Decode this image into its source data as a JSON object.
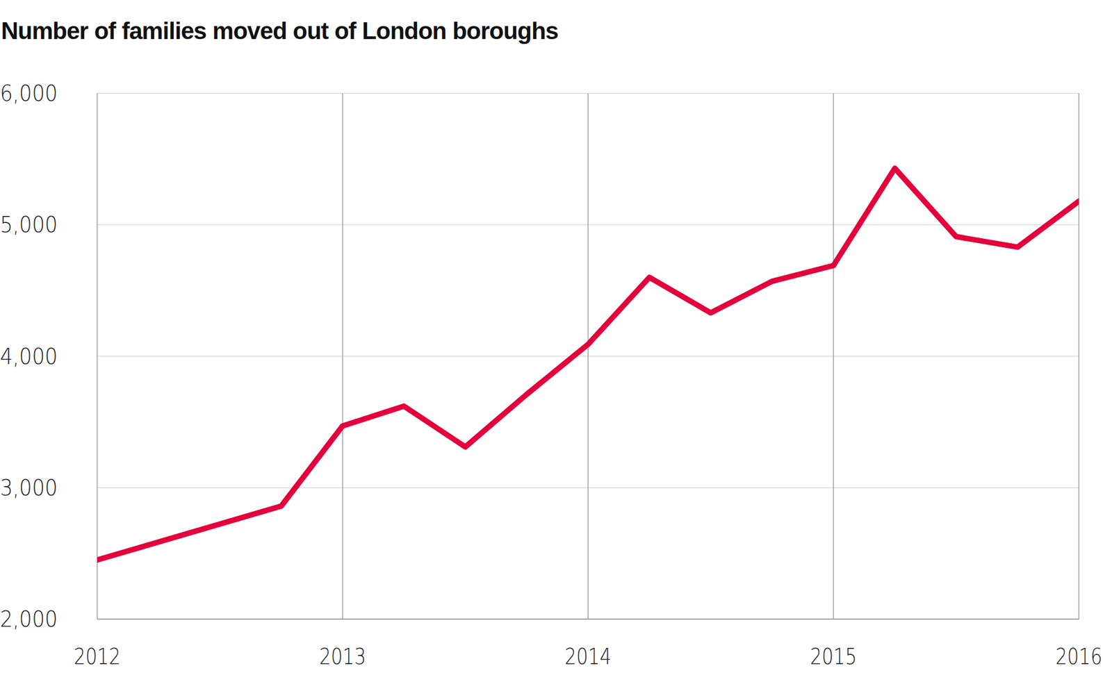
{
  "chart_data": {
    "type": "line",
    "title": "Number of families moved out of London boroughs",
    "x": [
      2012,
      2012.75,
      2013,
      2013.25,
      2013.5,
      2013.75,
      2014,
      2014.25,
      2014.5,
      2014.75,
      2015,
      2015.25,
      2015.5,
      2015.75,
      2016
    ],
    "values": [
      2450,
      2860,
      3470,
      3620,
      3310,
      3710,
      4090,
      4600,
      4330,
      4570,
      4690,
      5430,
      4910,
      4830,
      5180
    ],
    "color": "#e4003b",
    "xlim": [
      2012,
      2016
    ],
    "xticks": [
      2012,
      2013,
      2014,
      2015,
      2016
    ],
    "ylim": [
      2000,
      6000
    ],
    "yticks": [
      {
        "value": 2000,
        "label": "2,000"
      },
      {
        "value": 3000,
        "label": "3,000"
      },
      {
        "value": 4000,
        "label": "4,000"
      },
      {
        "value": 5000,
        "label": "5,000"
      },
      {
        "value": 6000,
        "label": "6,000"
      }
    ],
    "grid": true
  }
}
